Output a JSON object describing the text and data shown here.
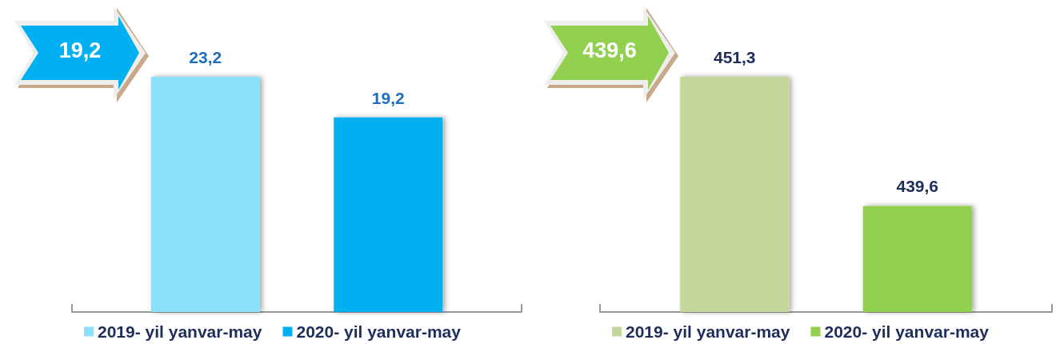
{
  "chart_data": [
    {
      "type": "bar",
      "categories": [
        null
      ],
      "series": [
        {
          "name": "2019- yil yanvar-may",
          "color": "#8be0fc",
          "values": [
            23.2
          ],
          "value_labels": [
            "23,2"
          ]
        },
        {
          "name": "2020- yil yanvar-may",
          "color": "#00b0f0",
          "values": [
            19.2
          ],
          "value_labels": [
            "19,2"
          ]
        }
      ],
      "tick_labels": false,
      "legend": "bottom",
      "grid": false,
      "annotations": [
        "19,2"
      ]
    },
    {
      "type": "bar",
      "categories": [
        null
      ],
      "series": [
        {
          "name": "2019- yil yanvar-may",
          "color": "#c4d79b",
          "values": [
            451.3
          ],
          "value_labels": [
            "451,3"
          ]
        },
        {
          "name": "2020- yil yanvar-may",
          "color": "#92d050",
          "values": [
            439.6
          ],
          "value_labels": [
            "439,6"
          ]
        }
      ],
      "ylim": [
        430,
        451.3
      ],
      "tick_labels": false,
      "legend": "bottom",
      "grid": false,
      "annotations": [
        "439,6"
      ]
    }
  ]
}
